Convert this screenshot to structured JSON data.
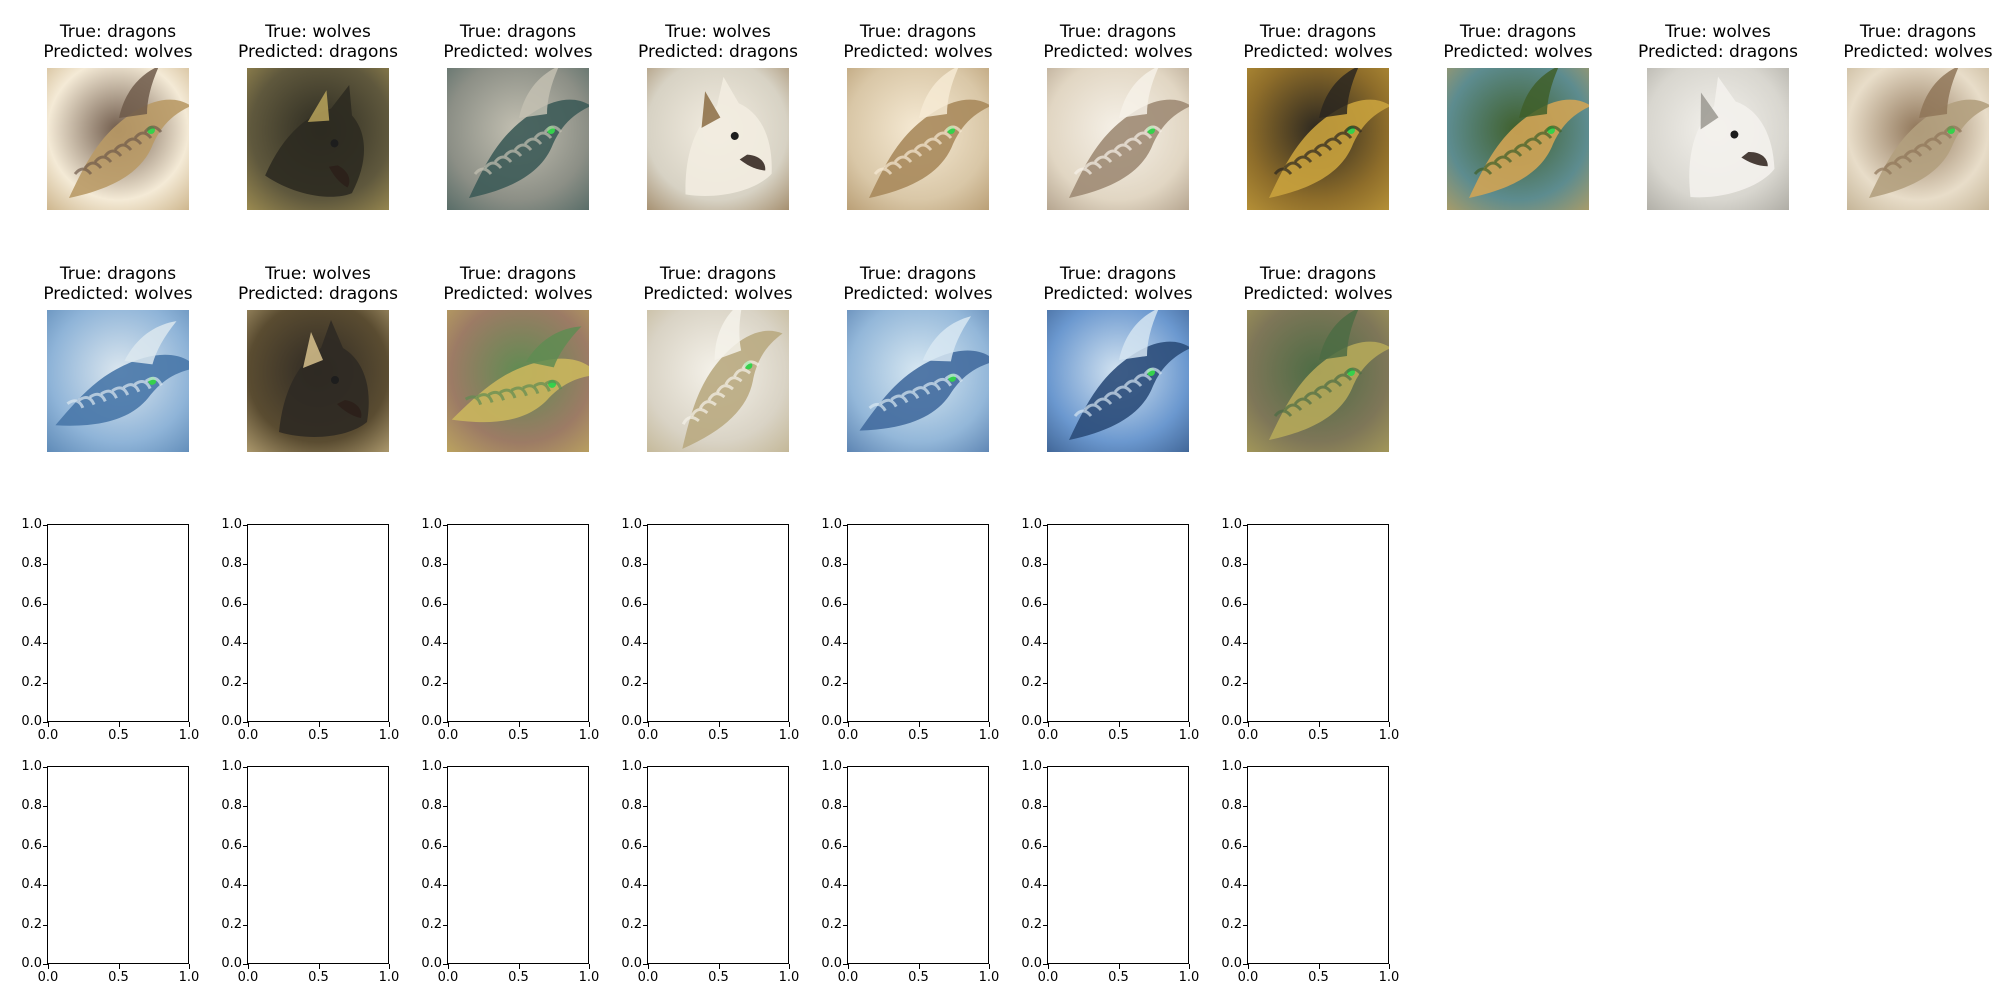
{
  "chart_data": {
    "type": "image-grid",
    "rows": 4,
    "columns": 10,
    "image_panels": [
      {
        "true_label": "dragons",
        "predicted_label": "wolves",
        "subject": "dragon",
        "palette": [
          "#f4ead6",
          "#b99a66",
          "#6f5a4a"
        ],
        "rotation": 0
      },
      {
        "true_label": "wolves",
        "predicted_label": "dragons",
        "subject": "wolf",
        "palette": [
          "#5f583d",
          "#b8a35a",
          "#2d2b21"
        ],
        "rotation": 18
      },
      {
        "true_label": "dragons",
        "predicted_label": "wolves",
        "subject": "dragon",
        "palette": [
          "#8c8f86",
          "#3d5b58",
          "#c3c0b2"
        ],
        "rotation": 0
      },
      {
        "true_label": "wolves",
        "predicted_label": "dragons",
        "subject": "wolf",
        "palette": [
          "#d7d2c4",
          "#8b6c43",
          "#f2ece0"
        ],
        "rotation": -7
      },
      {
        "true_label": "dragons",
        "predicted_label": "wolves",
        "subject": "dragon",
        "palette": [
          "#d9c7a7",
          "#a98a5c",
          "#f6ead4"
        ],
        "rotation": 0
      },
      {
        "true_label": "dragons",
        "predicted_label": "wolves",
        "subject": "dragon",
        "palette": [
          "#e1d6c3",
          "#9e8b74",
          "#f6f1e8"
        ],
        "rotation": 0
      },
      {
        "true_label": "dragons",
        "predicted_label": "wolves",
        "subject": "dragon",
        "palette": [
          "#8e6d2a",
          "#c9a23d",
          "#2b2720"
        ],
        "rotation": 0
      },
      {
        "true_label": "dragons",
        "predicted_label": "wolves",
        "subject": "dragon",
        "palette": [
          "#5d8c8f",
          "#d0a455",
          "#3f5f2a"
        ],
        "rotation": 0
      },
      {
        "true_label": "wolves",
        "predicted_label": "dragons",
        "subject": "wolf",
        "palette": [
          "#d8d6cf",
          "#9a9890",
          "#f3f1ec"
        ],
        "rotation": -12
      },
      {
        "true_label": "dragons",
        "predicted_label": "wolves",
        "subject": "dragon",
        "palette": [
          "#e8ddc9",
          "#b3a07e",
          "#8f7558"
        ],
        "rotation": 0
      },
      {
        "true_label": "dragons",
        "predicted_label": "wolves",
        "subject": "dragon",
        "palette": [
          "#8fb4d8",
          "#4877a8",
          "#dce7ef"
        ],
        "rotation": 15
      },
      {
        "true_label": "wolves",
        "predicted_label": "dragons",
        "subject": "wolf",
        "palette": [
          "#5a4c31",
          "#d8c28d",
          "#2f2a24"
        ],
        "rotation": 0
      },
      {
        "true_label": "dragons",
        "predicted_label": "wolves",
        "subject": "dragon",
        "palette": [
          "#9c7b65",
          "#cab65d",
          "#5f8c52"
        ],
        "rotation": 20
      },
      {
        "true_label": "dragons",
        "predicted_label": "wolves",
        "subject": "dragon",
        "palette": [
          "#d9d3c5",
          "#b9aa81",
          "#f5f2ea"
        ],
        "rotation": -12
      },
      {
        "true_label": "dragons",
        "predicted_label": "wolves",
        "subject": "dragon",
        "palette": [
          "#93b7d9",
          "#426b9f",
          "#d8e8f2"
        ],
        "rotation": 10
      },
      {
        "true_label": "dragons",
        "predicted_label": "wolves",
        "subject": "dragon",
        "palette": [
          "#6b98cf",
          "#2b4c7a",
          "#d4e4f1"
        ],
        "rotation": 0
      },
      {
        "true_label": "dragons",
        "predicted_label": "wolves",
        "subject": "dragon",
        "palette": [
          "#7e7658",
          "#b5a85a",
          "#4c6c44"
        ],
        "rotation": 0
      }
    ],
    "empty_axes": {
      "count": 14,
      "xlim": [
        0.0,
        1.0
      ],
      "ylim": [
        0.0,
        1.0
      ],
      "x_ticks": [
        "0.0",
        "0.5",
        "1.0"
      ],
      "y_ticks": [
        "0.0",
        "0.2",
        "0.4",
        "0.6",
        "0.8",
        "1.0"
      ]
    },
    "title_prefixes": {
      "true": "True: ",
      "predicted": "Predicted: "
    },
    "grid": false
  }
}
